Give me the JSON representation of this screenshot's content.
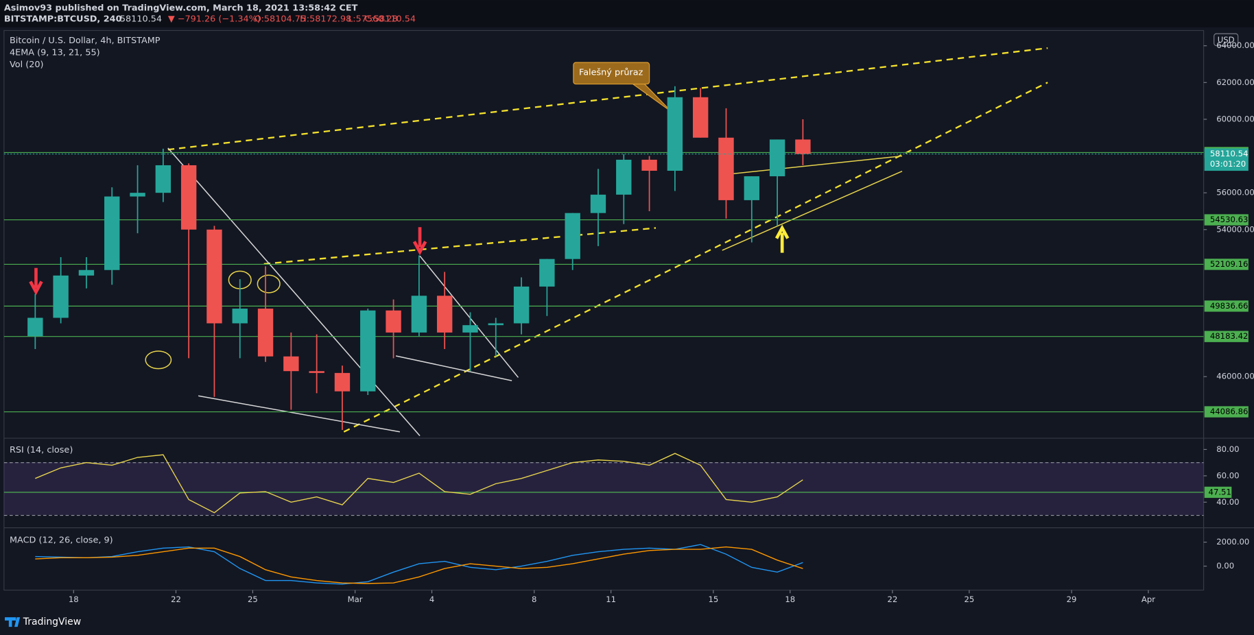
{
  "header": {
    "author_line": "Asimov93 published on TradingView.com, March 18, 2021 13:58:42 CET",
    "symbol": "BITSTAMP:BTCUSD, 240",
    "price": "58110.54",
    "change": "▼ −791.26 (−1.34%)",
    "open": "O:58104.75",
    "high": "H:58172.98",
    "low": "L:57560.28",
    "close": "C:58110.54"
  },
  "footer": {
    "brand": "TradingView"
  },
  "chart_data": [
    {
      "type": "candlestick",
      "title": "Bitcoin / U.S. Dollar, 4h, BITSTAMP",
      "subtitle": "4EMA (9, 13, 21, 55)",
      "volume_label": "Vol (20)",
      "currency": "USD",
      "x": [
        16.5,
        17.5,
        18.5,
        19.5,
        20.5,
        21.5,
        22.5,
        23.5,
        24.5,
        25.5,
        26.5,
        27.5,
        28.5,
        29.5,
        30.5,
        31.5,
        32.5,
        33.5,
        34.5,
        35.5,
        36.5,
        37.5,
        38.5,
        39.5,
        40.5,
        41.5,
        42.5,
        43.5,
        44.5,
        45.5,
        46.5
      ],
      "open": [
        48200,
        49200,
        51500,
        51800,
        55800,
        56000,
        57500,
        54000,
        48900,
        49700,
        47100,
        46300,
        46200,
        45200,
        49600,
        48400,
        50400,
        48400,
        48800,
        48900,
        50900,
        52400,
        54900,
        55900,
        57800,
        57200,
        61200,
        59000,
        55600,
        56900,
        58900
      ],
      "high": [
        50500,
        52500,
        52500,
        56300,
        57500,
        58400,
        57600,
        54200,
        51300,
        52000,
        48400,
        48300,
        46600,
        49700,
        50200,
        52600,
        51700,
        49500,
        49200,
        51400,
        52400,
        54900,
        57300,
        58100,
        58000,
        61800,
        61700,
        60600,
        56900,
        58900,
        60000
      ],
      "low": [
        47500,
        48900,
        50800,
        51000,
        53800,
        55500,
        47000,
        44900,
        47000,
        46800,
        44200,
        45100,
        43100,
        45000,
        47000,
        48200,
        47500,
        46300,
        47100,
        48300,
        49300,
        51800,
        53100,
        54300,
        55000,
        56100,
        59000,
        54600,
        53300,
        54200,
        57500
      ],
      "close": [
        49200,
        51500,
        51800,
        55800,
        56000,
        57500,
        54000,
        48900,
        49700,
        47100,
        46300,
        46200,
        45200,
        49600,
        48400,
        50400,
        48400,
        48800,
        48900,
        50900,
        52400,
        54900,
        55900,
        57800,
        57200,
        61200,
        59000,
        55600,
        56900,
        58900,
        58110.54
      ],
      "up_color": "#26a69a",
      "down_color": "#ef5350",
      "xlim": [
        15.28,
        62.16
      ],
      "xticks": [
        18,
        22,
        25,
        {
          "value": 29,
          "label": "Mar"
        },
        {
          "value": 32,
          "label": "4"
        },
        {
          "value": 36,
          "label": "8"
        },
        {
          "value": 39,
          "label": "11"
        },
        {
          "value": 43,
          "label": "15"
        },
        {
          "value": 46,
          "label": "18"
        },
        {
          "value": 50,
          "label": "22"
        },
        {
          "value": 53,
          "label": "25"
        },
        {
          "value": 57,
          "label": "29"
        },
        {
          "value": 60,
          "label": "Apr"
        }
      ],
      "ylim": [
        42650,
        64830
      ],
      "yticks": [
        {
          "value": 46000,
          "label": "46000.00"
        },
        {
          "value": 54000,
          "label": "54000.00"
        },
        {
          "value": 56000,
          "label": "56000.00"
        },
        {
          "value": 60000,
          "label": "60000.00"
        },
        {
          "value": 62000,
          "label": "62000.00"
        },
        {
          "value": 64000,
          "label": "64000.00"
        }
      ],
      "levels": [
        58189.94,
        54530.63,
        52109.16,
        49836.66,
        48183.42,
        44086.86
      ],
      "level_color": "#4caf50",
      "last_price": 58110.54,
      "countdown": "03:01:20",
      "annotations": [
        "Falešný průraz"
      ]
    },
    {
      "type": "line",
      "title": "RSI (14, close)",
      "color": "#e8d44d",
      "x": [
        16.5,
        17.5,
        18.5,
        19.5,
        20.5,
        21.5,
        22.5,
        23.5,
        24.5,
        25.5,
        26.5,
        27.5,
        28.5,
        29.5,
        30.5,
        31.5,
        32.5,
        33.5,
        34.5,
        35.5,
        36.5,
        37.5,
        38.5,
        39.5,
        40.5,
        41.5,
        42.5,
        43.5,
        44.5,
        45.5,
        46.5
      ],
      "values": [
        58,
        66,
        70,
        68,
        74,
        76,
        42,
        32,
        47,
        48,
        40,
        44,
        38,
        58,
        55,
        62,
        48,
        46,
        54,
        58,
        64,
        70,
        72,
        71,
        68,
        77,
        68,
        42,
        40,
        44,
        57
      ],
      "xlim": [
        15.28,
        62.16
      ],
      "ylim": [
        20.6,
        86.1
      ],
      "yticks": [
        {
          "value": 80,
          "label": "80.00"
        },
        {
          "value": 60,
          "label": "60.00"
        },
        {
          "value": 40,
          "label": "40.00"
        }
      ],
      "bands": [
        70,
        30
      ],
      "level": 47.51
    },
    {
      "type": "line",
      "title": "MACD (12, 26, close, 9)",
      "x": [
        16.5,
        17.5,
        18.5,
        19.5,
        20.5,
        21.5,
        22.5,
        23.5,
        24.5,
        25.5,
        26.5,
        27.5,
        28.5,
        29.5,
        30.5,
        31.5,
        32.5,
        33.5,
        34.5,
        35.5,
        36.5,
        37.5,
        38.5,
        39.5,
        40.5,
        41.5,
        42.5,
        43.5,
        44.5,
        45.5,
        46.5
      ],
      "series": [
        {
          "color": "#2196f3",
          "values": [
            800,
            750,
            700,
            800,
            1200,
            1500,
            1600,
            1200,
            -200,
            -1200,
            -1200,
            -1400,
            -1500,
            -1300,
            -500,
            200,
            400,
            -100,
            -300,
            0,
            400,
            900,
            1200,
            1400,
            1500,
            1400,
            1800,
            1000,
            -100,
            -500,
            300
          ]
        },
        {
          "color": "#ff9800",
          "values": [
            600,
            700,
            700,
            750,
            900,
            1200,
            1500,
            1500,
            800,
            -300,
            -900,
            -1200,
            -1400,
            -1450,
            -1400,
            -900,
            -200,
            200,
            0,
            -200,
            -100,
            200,
            600,
            1000,
            1300,
            1400,
            1400,
            1600,
            1400,
            500,
            -200
          ]
        }
      ],
      "xlim": [
        15.28,
        62.16
      ],
      "ylim": [
        -2000,
        2933
      ],
      "yticks": [
        {
          "value": 2000,
          "label": "2000.00"
        },
        {
          "value": 0,
          "label": "0.00"
        }
      ]
    }
  ]
}
